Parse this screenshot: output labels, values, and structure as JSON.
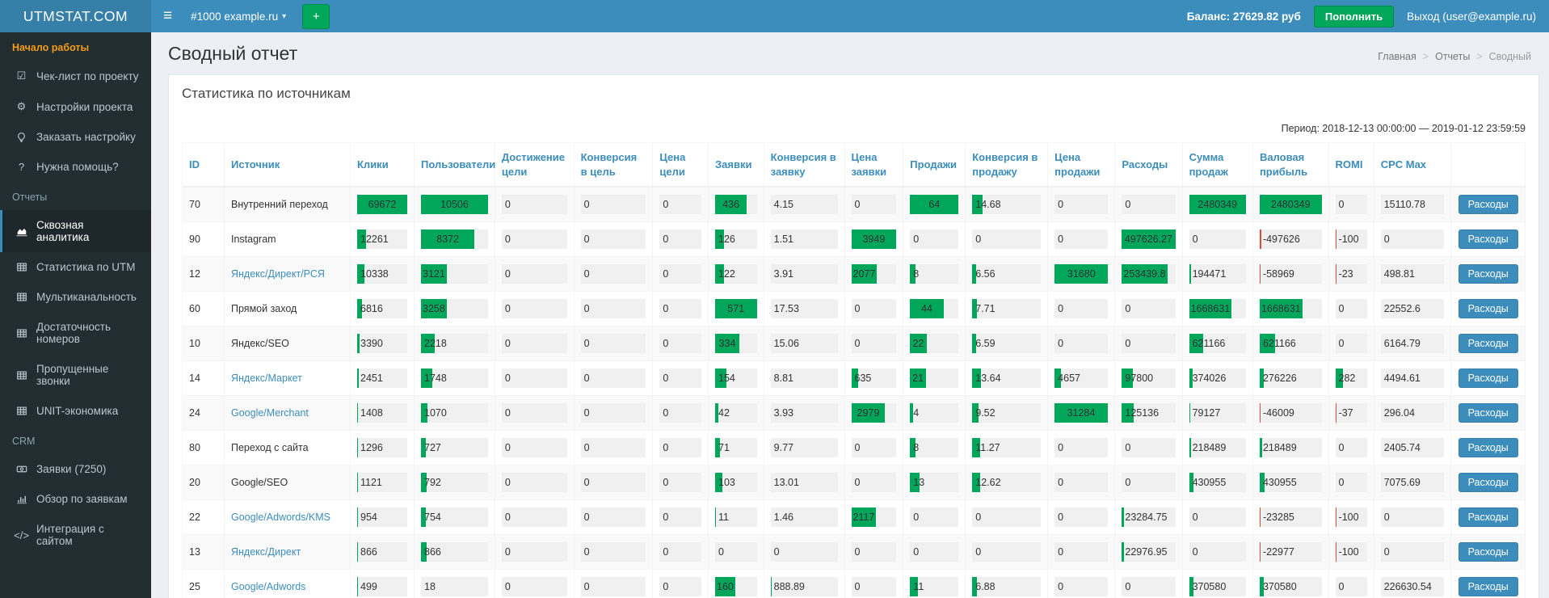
{
  "icons": {
    "hamburger": "≡",
    "caret_down": "▾",
    "plus": "+",
    "breadcrumb_sep": ">"
  },
  "topbar": {
    "logo": "UTMSTAT.COM",
    "project": "#1000 example.ru",
    "balance": "Баланс: 27629.82 руб",
    "topup_label": "Пополнить",
    "logout": "Выход (user@example.ru)"
  },
  "sidebar": {
    "sections": [
      {
        "header": "Начало работы",
        "accent": true,
        "items": [
          {
            "name": "checklist",
            "icon": "check-square-icon",
            "label": "Чек-лист по проекту"
          },
          {
            "name": "project-settings",
            "icon": "gear-icon",
            "label": "Настройки проекта"
          },
          {
            "name": "order-setup",
            "icon": "bulb-icon",
            "label": "Заказать настройку"
          },
          {
            "name": "need-help",
            "icon": "question-icon",
            "label": "Нужна помощь?"
          }
        ]
      },
      {
        "header": "Отчеты",
        "accent": false,
        "items": [
          {
            "name": "cross-analytics",
            "icon": "area-chart-icon",
            "label": "Сквозная аналитика",
            "active": true
          },
          {
            "name": "utm-stats",
            "icon": "table-icon",
            "label": "Статистика по UTM"
          },
          {
            "name": "multichannel",
            "icon": "table-icon",
            "label": "Мультиканальность"
          },
          {
            "name": "numbers-sufficiency",
            "icon": "table-icon",
            "label": "Достаточность номеров"
          },
          {
            "name": "missed-calls",
            "icon": "table-icon",
            "label": "Пропущенные звонки"
          },
          {
            "name": "unit-economics",
            "icon": "table-icon",
            "label": "UNIT-экономика"
          }
        ]
      },
      {
        "header": "CRM",
        "accent": false,
        "items": [
          {
            "name": "leads",
            "icon": "money-icon",
            "label": "Заявки (7250)"
          },
          {
            "name": "leads-overview",
            "icon": "bar-chart-icon",
            "label": "Обзор по заявкам"
          },
          {
            "name": "site-integration",
            "icon": "code-icon",
            "label": "Интеграция с сайтом"
          }
        ]
      }
    ]
  },
  "page": {
    "title": "Сводный отчет",
    "breadcrumb": [
      "Главная",
      "Отчеты",
      "Сводный"
    ]
  },
  "panel": {
    "title": "Статистика по источникам",
    "period": "Период: 2018-12-13 00:00:00 — 2019-01-12 23:59:59"
  },
  "table": {
    "columns": [
      "ID",
      "Источник",
      "Клики",
      "Пользователи",
      "Достижение цели",
      "Конверсия в цель",
      "Цена цели",
      "Заявки",
      "Конверсия в заявку",
      "Цена заявки",
      "Продажи",
      "Конверсия в продажу",
      "Цена продажи",
      "Расходы",
      "Сумма продаж",
      "Валовая прибыль",
      "ROMI",
      "CPC Max",
      ""
    ],
    "action_label": "Расходы",
    "rows": [
      {
        "id": "70",
        "source": "Внутренний переход",
        "link": false,
        "cells": [
          [
            "69672",
            100,
            "g"
          ],
          [
            "10506",
            100,
            "g"
          ],
          [
            "0",
            0,
            ""
          ],
          [
            "0",
            0,
            ""
          ],
          [
            "0",
            0,
            ""
          ],
          [
            "436",
            76,
            "g"
          ],
          [
            "4.15",
            0,
            ""
          ],
          [
            "0",
            0,
            ""
          ],
          [
            "64",
            100,
            "g"
          ],
          [
            "14.68",
            15,
            "g"
          ],
          [
            "0",
            0,
            ""
          ],
          [
            "0",
            0,
            ""
          ],
          [
            "2480349",
            100,
            "g"
          ],
          [
            "2480349",
            100,
            "g"
          ],
          [
            "0",
            0,
            ""
          ],
          [
            "15110.78",
            0,
            ""
          ]
        ]
      },
      {
        "id": "90",
        "source": "Instagram",
        "link": false,
        "cells": [
          [
            "12261",
            18,
            "g"
          ],
          [
            "8372",
            80,
            "g"
          ],
          [
            "0",
            0,
            ""
          ],
          [
            "0",
            0,
            ""
          ],
          [
            "0",
            0,
            ""
          ],
          [
            "126",
            22,
            "g"
          ],
          [
            "1.51",
            0,
            ""
          ],
          [
            "3949",
            100,
            "g"
          ],
          [
            "0",
            0,
            ""
          ],
          [
            "0",
            0,
            ""
          ],
          [
            "0",
            0,
            ""
          ],
          [
            "497626.27",
            100,
            "g"
          ],
          [
            "0",
            0,
            ""
          ],
          [
            "-497626",
            3,
            "r"
          ],
          [
            "-100",
            5,
            "r"
          ],
          [
            "0",
            0,
            ""
          ]
        ]
      },
      {
        "id": "12",
        "source": "Яндекс/Директ/РСЯ",
        "link": true,
        "cells": [
          [
            "10338",
            15,
            "g"
          ],
          [
            "3121",
            30,
            "g"
          ],
          [
            "0",
            0,
            ""
          ],
          [
            "0",
            0,
            ""
          ],
          [
            "0",
            0,
            ""
          ],
          [
            "122",
            21,
            "g"
          ],
          [
            "3.91",
            0,
            ""
          ],
          [
            "2077",
            53,
            "g"
          ],
          [
            "8",
            12,
            "g"
          ],
          [
            "6.56",
            6,
            "g"
          ],
          [
            "31680",
            100,
            "g"
          ],
          [
            "253439.8",
            51,
            "g"
          ],
          [
            "194471",
            3,
            "g"
          ],
          [
            "-58969",
            1.5,
            "r"
          ],
          [
            "-23",
            2,
            "r"
          ],
          [
            "498.81",
            0,
            ""
          ]
        ]
      },
      {
        "id": "60",
        "source": "Прямой заход",
        "link": false,
        "cells": [
          [
            "6816",
            10,
            "g"
          ],
          [
            "3258",
            31,
            "g"
          ],
          [
            "0",
            0,
            ""
          ],
          [
            "0",
            0,
            ""
          ],
          [
            "0",
            0,
            ""
          ],
          [
            "571",
            100,
            "g"
          ],
          [
            "17.53",
            0,
            ""
          ],
          [
            "0",
            0,
            ""
          ],
          [
            "44",
            69,
            "g"
          ],
          [
            "7.71",
            7,
            "g"
          ],
          [
            "0",
            0,
            ""
          ],
          [
            "0",
            0,
            ""
          ],
          [
            "1668631",
            55,
            "g"
          ],
          [
            "1668631",
            55,
            "g"
          ],
          [
            "0",
            0,
            ""
          ],
          [
            "22552.6",
            0,
            ""
          ]
        ]
      },
      {
        "id": "10",
        "source": "Яндекс/SEO",
        "link": false,
        "cells": [
          [
            "3390",
            5,
            "g"
          ],
          [
            "2218",
            21,
            "g"
          ],
          [
            "0",
            0,
            ""
          ],
          [
            "0",
            0,
            ""
          ],
          [
            "0",
            0,
            ""
          ],
          [
            "334",
            58,
            "g"
          ],
          [
            "15.06",
            0,
            ""
          ],
          [
            "0",
            0,
            ""
          ],
          [
            "22",
            34,
            "g"
          ],
          [
            "6.59",
            6,
            "g"
          ],
          [
            "0",
            0,
            ""
          ],
          [
            "0",
            0,
            ""
          ],
          [
            "621166",
            25,
            "g"
          ],
          [
            "621166",
            25,
            "g"
          ],
          [
            "0",
            0,
            ""
          ],
          [
            "6164.79",
            0,
            ""
          ]
        ]
      },
      {
        "id": "14",
        "source": "Яндекс/Маркет",
        "link": true,
        "cells": [
          [
            "2451",
            4,
            "g"
          ],
          [
            "1748",
            17,
            "g"
          ],
          [
            "0",
            0,
            ""
          ],
          [
            "0",
            0,
            ""
          ],
          [
            "0",
            0,
            ""
          ],
          [
            "154",
            27,
            "g"
          ],
          [
            "8.81",
            0,
            ""
          ],
          [
            "635",
            16,
            "g"
          ],
          [
            "21",
            33,
            "g"
          ],
          [
            "13.64",
            13,
            "g"
          ],
          [
            "4657",
            12,
            "g"
          ],
          [
            "97800",
            20,
            "g"
          ],
          [
            "374026",
            6,
            "g"
          ],
          [
            "276226",
            6,
            "g"
          ],
          [
            "282",
            25,
            "g"
          ],
          [
            "4494.61",
            0,
            ""
          ]
        ]
      },
      {
        "id": "24",
        "source": "Google/Merchant",
        "link": true,
        "cells": [
          [
            "1408",
            2,
            "g"
          ],
          [
            "1070",
            10,
            "g"
          ],
          [
            "0",
            0,
            ""
          ],
          [
            "0",
            0,
            ""
          ],
          [
            "0",
            0,
            ""
          ],
          [
            "42",
            7,
            "g"
          ],
          [
            "3.93",
            0,
            ""
          ],
          [
            "2979",
            75,
            "g"
          ],
          [
            "4",
            6,
            "g"
          ],
          [
            "9.52",
            9,
            "g"
          ],
          [
            "31284",
            99,
            "g"
          ],
          [
            "125136",
            22,
            "g"
          ],
          [
            "79127",
            2,
            "g"
          ],
          [
            "-46009",
            1.5,
            "r"
          ],
          [
            "-37",
            2,
            "r"
          ],
          [
            "296.04",
            0,
            ""
          ]
        ]
      },
      {
        "id": "80",
        "source": "Переход с сайта",
        "link": false,
        "cells": [
          [
            "1296",
            2,
            "g"
          ],
          [
            "727",
            7,
            "g"
          ],
          [
            "0",
            0,
            ""
          ],
          [
            "0",
            0,
            ""
          ],
          [
            "0",
            0,
            ""
          ],
          [
            "71",
            12,
            "g"
          ],
          [
            "9.77",
            0,
            ""
          ],
          [
            "0",
            0,
            ""
          ],
          [
            "8",
            12,
            "g"
          ],
          [
            "11.27",
            11,
            "g"
          ],
          [
            "0",
            0,
            ""
          ],
          [
            "0",
            0,
            ""
          ],
          [
            "218489",
            4,
            "g"
          ],
          [
            "218489",
            4,
            "g"
          ],
          [
            "0",
            0,
            ""
          ],
          [
            "2405.74",
            0,
            ""
          ]
        ]
      },
      {
        "id": "20",
        "source": "Google/SEO",
        "link": false,
        "cells": [
          [
            "1121",
            2,
            "g"
          ],
          [
            "792",
            8,
            "g"
          ],
          [
            "0",
            0,
            ""
          ],
          [
            "0",
            0,
            ""
          ],
          [
            "0",
            0,
            ""
          ],
          [
            "103",
            18,
            "g"
          ],
          [
            "13.01",
            0,
            ""
          ],
          [
            "0",
            0,
            ""
          ],
          [
            "13",
            20,
            "g"
          ],
          [
            "12.62",
            12,
            "g"
          ],
          [
            "0",
            0,
            ""
          ],
          [
            "0",
            0,
            ""
          ],
          [
            "430955",
            8,
            "g"
          ],
          [
            "430955",
            8,
            "g"
          ],
          [
            "0",
            0,
            ""
          ],
          [
            "7075.69",
            0,
            ""
          ]
        ]
      },
      {
        "id": "22",
        "source": "Google/Adwords/KMS",
        "link": true,
        "cells": [
          [
            "954",
            1.5,
            "g"
          ],
          [
            "754",
            7,
            "g"
          ],
          [
            "0",
            0,
            ""
          ],
          [
            "0",
            0,
            ""
          ],
          [
            "0",
            0,
            ""
          ],
          [
            "11",
            2,
            "g"
          ],
          [
            "1.46",
            0,
            ""
          ],
          [
            "2117",
            54,
            "g"
          ],
          [
            "0",
            0,
            ""
          ],
          [
            "0",
            0,
            ""
          ],
          [
            "0",
            0,
            ""
          ],
          [
            "23284.75",
            4,
            "g"
          ],
          [
            "0",
            0,
            ""
          ],
          [
            "-23285",
            1.5,
            "r"
          ],
          [
            "-100",
            5,
            "r"
          ],
          [
            "0",
            0,
            ""
          ]
        ]
      },
      {
        "id": "13",
        "source": "Яндекс/Директ",
        "link": true,
        "cells": [
          [
            "866",
            1.5,
            "g"
          ],
          [
            "866",
            8,
            "g"
          ],
          [
            "0",
            0,
            ""
          ],
          [
            "0",
            0,
            ""
          ],
          [
            "0",
            0,
            ""
          ],
          [
            "0",
            0,
            ""
          ],
          [
            "0",
            0,
            ""
          ],
          [
            "0",
            0,
            ""
          ],
          [
            "0",
            0,
            ""
          ],
          [
            "0",
            0,
            ""
          ],
          [
            "0",
            0,
            ""
          ],
          [
            "22976.95",
            4,
            "g"
          ],
          [
            "0",
            0,
            ""
          ],
          [
            "-22977",
            1.5,
            "r"
          ],
          [
            "-100",
            5,
            "r"
          ],
          [
            "0",
            0,
            ""
          ]
        ]
      },
      {
        "id": "25",
        "source": "Google/Adwords",
        "link": true,
        "cells": [
          [
            "499",
            1.5,
            "g"
          ],
          [
            "18",
            0,
            ""
          ],
          [
            "0",
            0,
            ""
          ],
          [
            "0",
            0,
            ""
          ],
          [
            "0",
            0,
            ""
          ],
          [
            "160",
            28,
            "g"
          ],
          [
            "888.89",
            1.5,
            "g"
          ],
          [
            "0",
            0,
            ""
          ],
          [
            "11",
            17,
            "g"
          ],
          [
            "6.88",
            7,
            "g"
          ],
          [
            "0",
            0,
            ""
          ],
          [
            "0",
            0,
            ""
          ],
          [
            "370580",
            7,
            "g"
          ],
          [
            "370580",
            7,
            "g"
          ],
          [
            "0",
            0,
            ""
          ],
          [
            "226630.54",
            0,
            ""
          ]
        ]
      }
    ]
  }
}
